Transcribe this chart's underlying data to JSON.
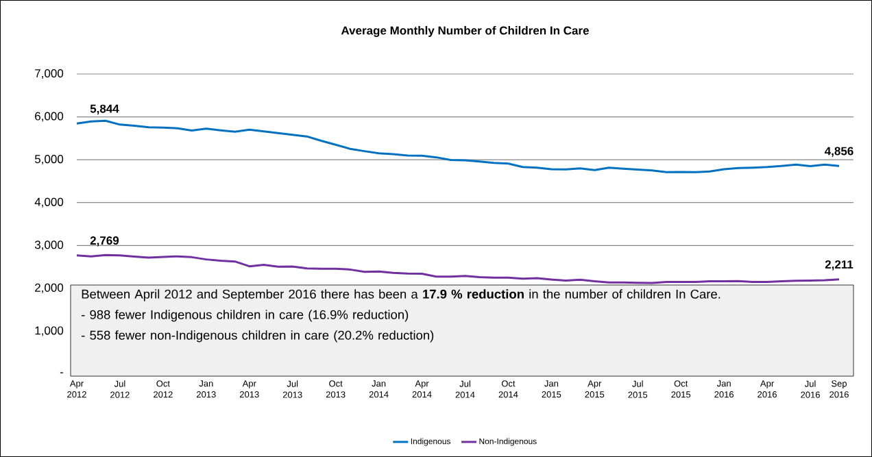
{
  "chart_data": {
    "type": "line",
    "title": "Average Monthly Number of Children In Care",
    "categories": [
      "Apr 2012",
      null,
      null,
      "Jul 2012",
      null,
      null,
      "Oct 2012",
      null,
      null,
      "Jan 2013",
      null,
      null,
      "Apr 2013",
      null,
      null,
      "Jul 2013",
      null,
      null,
      "Oct 2013",
      null,
      null,
      "Jan 2014",
      null,
      null,
      "Apr 2014",
      null,
      null,
      "Jul 2014",
      null,
      null,
      "Oct 2014",
      null,
      null,
      "Jan 2015",
      null,
      null,
      "Apr 2015",
      null,
      null,
      "Jul 2015",
      null,
      null,
      "Oct 2015",
      null,
      null,
      "Jan 2016",
      null,
      null,
      "Apr 2016",
      null,
      null,
      "Jul 2016",
      null,
      "Sep 2016"
    ],
    "series": [
      {
        "name": "Indigenous",
        "color": "#0070c0",
        "values": [
          5844,
          5893,
          5910,
          5820,
          5793,
          5756,
          5750,
          5734,
          5681,
          5724,
          5686,
          5654,
          5702,
          5660,
          5622,
          5580,
          5543,
          5442,
          5350,
          5255,
          5200,
          5150,
          5130,
          5100,
          5093,
          5056,
          4995,
          4985,
          4960,
          4925,
          4910,
          4830,
          4815,
          4780,
          4775,
          4800,
          4760,
          4815,
          4790,
          4770,
          4750,
          4710,
          4715,
          4710,
          4725,
          4780,
          4805,
          4815,
          4830,
          4855,
          4885,
          4850,
          4885,
          4856
        ],
        "value_labels": [
          "5,844",
          null,
          null,
          null,
          null,
          null,
          null,
          null,
          null,
          null,
          null,
          null,
          null,
          null,
          null,
          null,
          null,
          null,
          null,
          null,
          null,
          null,
          null,
          null,
          null,
          null,
          null,
          null,
          null,
          null,
          null,
          null,
          null,
          null,
          null,
          null,
          null,
          null,
          null,
          null,
          null,
          null,
          null,
          null,
          null,
          null,
          null,
          null,
          null,
          null,
          null,
          null,
          null,
          "4,856"
        ]
      },
      {
        "name": "Non-Indigenous",
        "color": "#7030a0",
        "values": [
          2769,
          2746,
          2775,
          2770,
          2740,
          2716,
          2734,
          2746,
          2727,
          2675,
          2646,
          2627,
          2515,
          2550,
          2506,
          2510,
          2467,
          2456,
          2456,
          2439,
          2386,
          2392,
          2362,
          2345,
          2340,
          2273,
          2273,
          2291,
          2260,
          2248,
          2248,
          2224,
          2236,
          2205,
          2180,
          2200,
          2167,
          2137,
          2137,
          2130,
          2125,
          2150,
          2150,
          2150,
          2167,
          2167,
          2170,
          2150,
          2150,
          2167,
          2177,
          2180,
          2190,
          2211
        ],
        "value_labels": [
          "2,769",
          null,
          null,
          null,
          null,
          null,
          null,
          null,
          null,
          null,
          null,
          null,
          null,
          null,
          null,
          null,
          null,
          null,
          null,
          null,
          null,
          null,
          null,
          null,
          null,
          null,
          null,
          null,
          null,
          null,
          null,
          null,
          null,
          null,
          null,
          null,
          null,
          null,
          null,
          null,
          null,
          null,
          null,
          null,
          null,
          null,
          null,
          null,
          null,
          null,
          null,
          null,
          null,
          "2,211"
        ]
      }
    ],
    "ylim": [
      0,
      7000
    ],
    "yticks": [
      {
        "value": 0,
        "label": "-"
      },
      {
        "value": 1000,
        "label": "1,000"
      },
      {
        "value": 2000,
        "label": "2,000"
      },
      {
        "value": 3000,
        "label": "3,000"
      },
      {
        "value": 4000,
        "label": "4,000"
      },
      {
        "value": 5000,
        "label": "5,000"
      },
      {
        "value": 6000,
        "label": "6,000"
      },
      {
        "value": 7000,
        "label": "7,000"
      }
    ],
    "grid": "y",
    "legend": "bottom",
    "marker": "none",
    "annotations": [
      "Between April 2012 and September 2016 there has been a **17.9 % reduction** in the number of children In Care.",
      "- 988 fewer Indigenous children in care (16.9% reduction)",
      "- 558 fewer non-Indigenous children in care (20.2% reduction)"
    ]
  }
}
